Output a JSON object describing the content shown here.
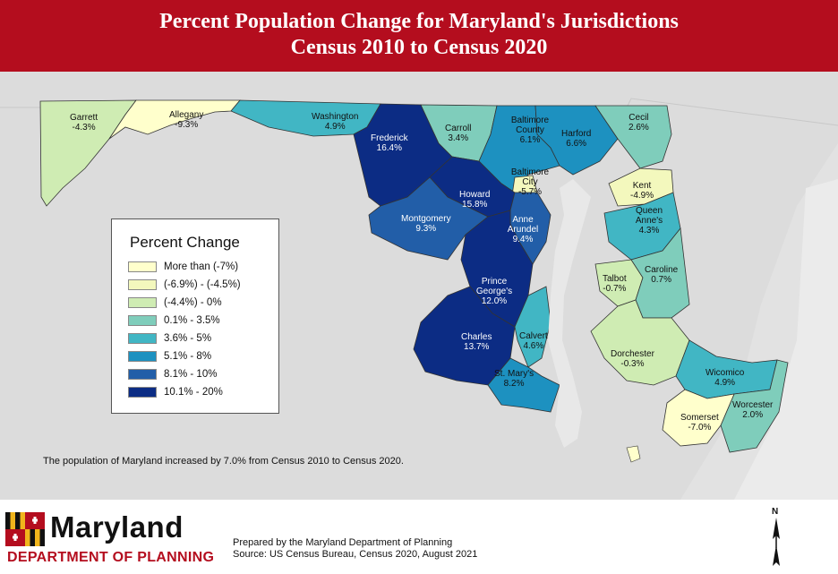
{
  "header": {
    "title_line1": "Percent Population Change for Maryland's Jurisdictions",
    "title_line2": "Census 2010 to Census 2020"
  },
  "legend": {
    "title": "Percent Change",
    "items": [
      {
        "label": "More than (-7%)",
        "color": "#ffffcc"
      },
      {
        "label": "(-6.9%) - (-4.5%)",
        "color": "#f3f8bd"
      },
      {
        "label": "(-4.4%) - 0%",
        "color": "#cfecb3"
      },
      {
        "label": "0.1% - 3.5%",
        "color": "#7fcdbb"
      },
      {
        "label": "3.6% - 5%",
        "color": "#41b6c4"
      },
      {
        "label": "5.1% - 8%",
        "color": "#1d91c0"
      },
      {
        "label": "8.1% - 10%",
        "color": "#225ea8"
      },
      {
        "label": "10.1% - 20%",
        "color": "#0c2c84"
      }
    ]
  },
  "counties": [
    {
      "name": "Garrett",
      "value": "-4.3%"
    },
    {
      "name": "Allegany",
      "value": "-9.3%"
    },
    {
      "name": "Washington",
      "value": "4.9%"
    },
    {
      "name": "Frederick",
      "value": "16.4%"
    },
    {
      "name": "Carroll",
      "value": "3.4%"
    },
    {
      "name": "Baltimore County",
      "value": "6.1%"
    },
    {
      "name": "Harford",
      "value": "6.6%"
    },
    {
      "name": "Cecil",
      "value": "2.6%"
    },
    {
      "name": "Baltimore City",
      "value": "-5.7%"
    },
    {
      "name": "Kent",
      "value": "-4.9%"
    },
    {
      "name": "Howard",
      "value": "15.8%"
    },
    {
      "name": "Montgomery",
      "value": "9.3%"
    },
    {
      "name": "Anne Arundel",
      "value": "9.4%"
    },
    {
      "name": "Queen Anne's",
      "value": "4.3%"
    },
    {
      "name": "Prince George's",
      "value": "12.0%"
    },
    {
      "name": "Caroline",
      "value": "0.7%"
    },
    {
      "name": "Talbot",
      "value": "-0.7%"
    },
    {
      "name": "Charles",
      "value": "13.7%"
    },
    {
      "name": "Calvert",
      "value": "4.6%"
    },
    {
      "name": "Dorchester",
      "value": "-0.3%"
    },
    {
      "name": "St. Mary's",
      "value": "8.2%"
    },
    {
      "name": "Wicomico",
      "value": "4.9%"
    },
    {
      "name": "Worcester",
      "value": "2.0%"
    },
    {
      "name": "Somerset",
      "value": "-7.0%"
    }
  ],
  "note": "The population of Maryland increased by 7.0% from Census 2010 to Census 2020.",
  "footer": {
    "logo_word": "Maryland",
    "logo_sub": "DEPARTMENT OF PLANNING",
    "credit_line1": "Prepared by the Maryland Department of Planning",
    "credit_line2": "Source: US Census Bureau, Census 2020, August 2021",
    "north_label": "N"
  }
}
